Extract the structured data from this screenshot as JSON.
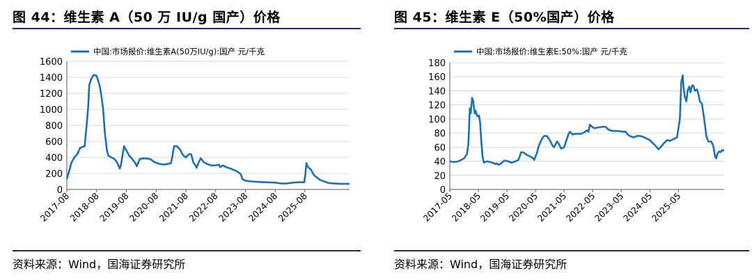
{
  "charts": [
    {
      "figure_title": "图 44：维生素 A（50 万 IU/g 国产）价格",
      "source": "资料来源：Wind，国海证券研究所",
      "color": "#1f6fb0"
    },
    {
      "figure_title": "图 45：维生素 E（50%国产）价格",
      "source": "资料来源：Wind，国海证券研究所",
      "color": "#1f6fb0"
    }
  ],
  "chart_data": [
    {
      "type": "line",
      "legend": "top-left",
      "grid": "horizontal",
      "series": [
        {
          "name": "中国:市场报价:维生素A(50万IU/g):国产 元/千克",
          "points": [
            [
              2017.6,
              130
            ],
            [
              2017.7,
              260
            ],
            [
              2017.75,
              330
            ],
            [
              2017.85,
              400
            ],
            [
              2017.95,
              440
            ],
            [
              2018.05,
              520
            ],
            [
              2018.2,
              540
            ],
            [
              2018.27,
              820
            ],
            [
              2018.32,
              1050
            ],
            [
              2018.35,
              1300
            ],
            [
              2018.42,
              1380
            ],
            [
              2018.5,
              1430
            ],
            [
              2018.6,
              1420
            ],
            [
              2018.65,
              1360
            ],
            [
              2018.7,
              1300
            ],
            [
              2018.75,
              1200
            ],
            [
              2018.82,
              1000
            ],
            [
              2018.88,
              700
            ],
            [
              2018.95,
              480
            ],
            [
              2019.0,
              420
            ],
            [
              2019.1,
              400
            ],
            [
              2019.2,
              380
            ],
            [
              2019.3,
              330
            ],
            [
              2019.38,
              260
            ],
            [
              2019.42,
              310
            ],
            [
              2019.46,
              400
            ],
            [
              2019.52,
              540
            ],
            [
              2019.58,
              500
            ],
            [
              2019.7,
              420
            ],
            [
              2019.8,
              380
            ],
            [
              2019.9,
              330
            ],
            [
              2019.95,
              290
            ],
            [
              2020.05,
              380
            ],
            [
              2020.2,
              390
            ],
            [
              2020.4,
              380
            ],
            [
              2020.55,
              340
            ],
            [
              2020.7,
              320
            ],
            [
              2020.85,
              310
            ],
            [
              2021.0,
              320
            ],
            [
              2021.1,
              330
            ],
            [
              2021.15,
              420
            ],
            [
              2021.2,
              540
            ],
            [
              2021.3,
              540
            ],
            [
              2021.4,
              500
            ],
            [
              2021.5,
              430
            ],
            [
              2021.6,
              400
            ],
            [
              2021.7,
              440
            ],
            [
              2021.78,
              440
            ],
            [
              2021.85,
              340
            ],
            [
              2021.92,
              300
            ],
            [
              2021.96,
              270
            ],
            [
              2022.02,
              330
            ],
            [
              2022.1,
              390
            ],
            [
              2022.2,
              340
            ],
            [
              2022.3,
              320
            ],
            [
              2022.45,
              300
            ],
            [
              2022.6,
              300
            ],
            [
              2022.7,
              310
            ],
            [
              2022.75,
              280
            ],
            [
              2022.85,
              300
            ],
            [
              2022.95,
              280
            ],
            [
              2023.1,
              260
            ],
            [
              2023.3,
              230
            ],
            [
              2023.45,
              190
            ],
            [
              2023.5,
              130
            ],
            [
              2023.6,
              110
            ],
            [
              2023.8,
              100
            ],
            [
              2024.0,
              95
            ],
            [
              2024.3,
              90
            ],
            [
              2024.6,
              85
            ],
            [
              2024.8,
              75
            ],
            [
              2025.0,
              75
            ],
            [
              2025.2,
              85
            ],
            [
              2025.4,
              90
            ],
            [
              2025.58,
              90
            ],
            [
              2025.62,
              200
            ],
            [
              2025.65,
              330
            ],
            [
              2025.7,
              280
            ],
            [
              2025.8,
              250
            ],
            [
              2025.9,
              180
            ],
            [
              2026.0,
              150
            ],
            [
              2026.1,
              120
            ],
            [
              2026.25,
              100
            ],
            [
              2026.4,
              80
            ],
            [
              2026.6,
              75
            ],
            [
              2026.8,
              70
            ],
            [
              2027.1,
              70
            ]
          ]
        }
      ],
      "x_ticks": [
        "2017-08",
        "2018-08",
        "2019-08",
        "2020-08",
        "2021-08",
        "2022-08",
        "2023-08",
        "2024-08",
        "2025-08"
      ],
      "y_ticks": [
        "0",
        "200",
        "400",
        "600",
        "800",
        "1000",
        "1200",
        "1400",
        "1600"
      ],
      "xlim": [
        2017.6,
        2027.1
      ],
      "ylim": [
        0,
        1600
      ]
    },
    {
      "type": "line",
      "legend": "top-left",
      "grid": "horizontal",
      "series": [
        {
          "name": "中国:市场报价:维生素E:50%:国产 元/千克",
          "points": [
            [
              2017.4,
              40
            ],
            [
              2017.55,
              39
            ],
            [
              2017.7,
              40
            ],
            [
              2017.8,
              42
            ],
            [
              2017.9,
              44
            ],
            [
              2018.0,
              50
            ],
            [
              2018.05,
              65
            ],
            [
              2018.1,
              115
            ],
            [
              2018.13,
              108
            ],
            [
              2018.18,
              130
            ],
            [
              2018.22,
              125
            ],
            [
              2018.27,
              108
            ],
            [
              2018.3,
              112
            ],
            [
              2018.36,
              104
            ],
            [
              2018.42,
              105
            ],
            [
              2018.46,
              95
            ],
            [
              2018.5,
              70
            ],
            [
              2018.55,
              45
            ],
            [
              2018.6,
              38
            ],
            [
              2018.7,
              40
            ],
            [
              2018.8,
              39
            ],
            [
              2018.9,
              38
            ],
            [
              2019.0,
              36
            ],
            [
              2019.05,
              37
            ],
            [
              2019.1,
              35
            ],
            [
              2019.2,
              37
            ],
            [
              2019.3,
              41
            ],
            [
              2019.45,
              40
            ],
            [
              2019.55,
              38
            ],
            [
              2019.7,
              40
            ],
            [
              2019.8,
              42
            ],
            [
              2019.9,
              53
            ],
            [
              2020.0,
              52
            ],
            [
              2020.1,
              49
            ],
            [
              2020.2,
              47
            ],
            [
              2020.3,
              45
            ],
            [
              2020.35,
              42
            ],
            [
              2020.45,
              52
            ],
            [
              2020.5,
              60
            ],
            [
              2020.6,
              70
            ],
            [
              2020.7,
              76
            ],
            [
              2020.8,
              76
            ],
            [
              2020.9,
              70
            ],
            [
              2021.0,
              62
            ],
            [
              2021.05,
              60
            ],
            [
              2021.15,
              68
            ],
            [
              2021.2,
              66
            ],
            [
              2021.3,
              58
            ],
            [
              2021.4,
              60
            ],
            [
              2021.55,
              78
            ],
            [
              2021.6,
              82
            ],
            [
              2021.7,
              78
            ],
            [
              2021.8,
              79
            ],
            [
              2021.9,
              79
            ],
            [
              2022.0,
              79
            ],
            [
              2022.1,
              81
            ],
            [
              2022.2,
              84
            ],
            [
              2022.25,
              82
            ],
            [
              2022.3,
              92
            ],
            [
              2022.35,
              90
            ],
            [
              2022.45,
              87
            ],
            [
              2022.6,
              88
            ],
            [
              2022.75,
              89
            ],
            [
              2022.85,
              89
            ],
            [
              2022.95,
              85
            ],
            [
              2023.1,
              83
            ],
            [
              2023.3,
              83
            ],
            [
              2023.45,
              82
            ],
            [
              2023.55,
              82
            ],
            [
              2023.65,
              77
            ],
            [
              2023.75,
              75
            ],
            [
              2023.85,
              74
            ],
            [
              2023.95,
              76
            ],
            [
              2024.05,
              76
            ],
            [
              2024.15,
              75
            ],
            [
              2024.3,
              72
            ],
            [
              2024.4,
              70
            ],
            [
              2024.5,
              66
            ],
            [
              2024.6,
              62
            ],
            [
              2024.7,
              57
            ],
            [
              2024.8,
              61
            ],
            [
              2024.9,
              66
            ],
            [
              2025.0,
              70
            ],
            [
              2025.1,
              69
            ],
            [
              2025.25,
              72
            ],
            [
              2025.35,
              74
            ],
            [
              2025.45,
              100
            ],
            [
              2025.5,
              152
            ],
            [
              2025.55,
              162
            ],
            [
              2025.58,
              145
            ],
            [
              2025.62,
              132
            ],
            [
              2025.68,
              125
            ],
            [
              2025.72,
              140
            ],
            [
              2025.78,
              146
            ],
            [
              2025.82,
              138
            ],
            [
              2025.88,
              148
            ],
            [
              2025.93,
              147
            ],
            [
              2025.98,
              140
            ],
            [
              2026.05,
              142
            ],
            [
              2026.1,
              135
            ],
            [
              2026.15,
              125
            ],
            [
              2026.22,
              122
            ],
            [
              2026.3,
              100
            ],
            [
              2026.38,
              75
            ],
            [
              2026.45,
              68
            ],
            [
              2026.55,
              68
            ],
            [
              2026.62,
              62
            ],
            [
              2026.68,
              47
            ],
            [
              2026.72,
              44
            ],
            [
              2026.76,
              50
            ],
            [
              2026.82,
              54
            ],
            [
              2026.88,
              53
            ],
            [
              2026.93,
              56
            ],
            [
              2027.0,
              55
            ]
          ]
        }
      ],
      "x_ticks": [
        "2017-05",
        "2018-05",
        "2019-05",
        "2020-05",
        "2021-05",
        "2022-05",
        "2023-05",
        "2024-05",
        "2025-05"
      ],
      "y_ticks": [
        "0",
        "20",
        "40",
        "60",
        "80",
        "100",
        "120",
        "140",
        "160",
        "180"
      ],
      "xlim": [
        2017.4,
        2027.0
      ],
      "ylim": [
        0,
        180
      ]
    }
  ]
}
